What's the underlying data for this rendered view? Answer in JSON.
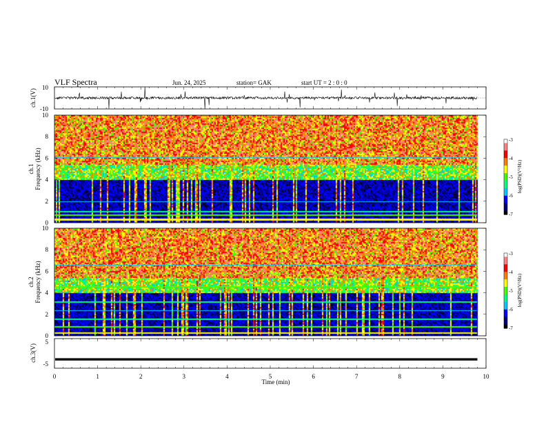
{
  "header": {
    "title": "VLF  Spectra",
    "date": "Jun. 24, 2025",
    "station": "station= GAK",
    "start": "start  UT  =    2  : 0   : 0"
  },
  "colors": {
    "palette": [
      "#000000",
      "#00007f",
      "#0000ff",
      "#00c8ff",
      "#00ff80",
      "#40ff00",
      "#ffff00",
      "#ff8000",
      "#ff0000",
      "#ff8080",
      "#ffffff"
    ]
  },
  "chart_data": [
    {
      "type": "line",
      "panel": "ch1-waveform",
      "ylabel": "ch.1(V)",
      "ylim": [
        -10,
        10
      ],
      "y_ticks": [
        "10",
        "-10"
      ],
      "xlim": [
        0,
        10
      ],
      "baseline": 0,
      "data_end_min": 9.8
    },
    {
      "type": "heatmap",
      "panel": "ch1-spectrogram",
      "ylabel_top": "ch.1",
      "ylabel": "Frequency  (kHz)",
      "ylim": [
        0,
        10
      ],
      "y_ticks": [
        "0",
        "2",
        "4",
        "6",
        "8",
        "10"
      ],
      "xlim": [
        0,
        10
      ],
      "data_end_min": 9.8,
      "colorbar": {
        "label": "log(PSD)(V²/Hz)",
        "range": [
          -7,
          -3
        ],
        "ticks": [
          "-3",
          "-4",
          "-5",
          "-6",
          "-7"
        ]
      }
    },
    {
      "type": "heatmap",
      "panel": "ch2-spectrogram",
      "ylabel_top": "ch.2",
      "ylabel": "Frequency  (kHz)",
      "ylim": [
        0,
        10
      ],
      "y_ticks": [
        "0",
        "2",
        "4",
        "6",
        "8",
        "10"
      ],
      "xlim": [
        0,
        10
      ],
      "data_end_min": 9.8,
      "colorbar": {
        "label": "log(PSD)(V²/Hz)",
        "range": [
          -7,
          -3
        ],
        "ticks": [
          "-3",
          "-4",
          "-5",
          "-6",
          "-7"
        ]
      }
    },
    {
      "type": "line",
      "panel": "ch3-waveform",
      "ylabel": "ch.3(V)",
      "ylim": [
        -5,
        5
      ],
      "y_ticks": [
        "5",
        "-5"
      ],
      "xlim": [
        0,
        10
      ],
      "baseline": -2,
      "data_end_min": 9.8,
      "xlabel": "Time  (min)",
      "x_ticks": [
        "0",
        "1",
        "2",
        "3",
        "4",
        "5",
        "6",
        "7",
        "8",
        "9",
        "10"
      ]
    }
  ]
}
